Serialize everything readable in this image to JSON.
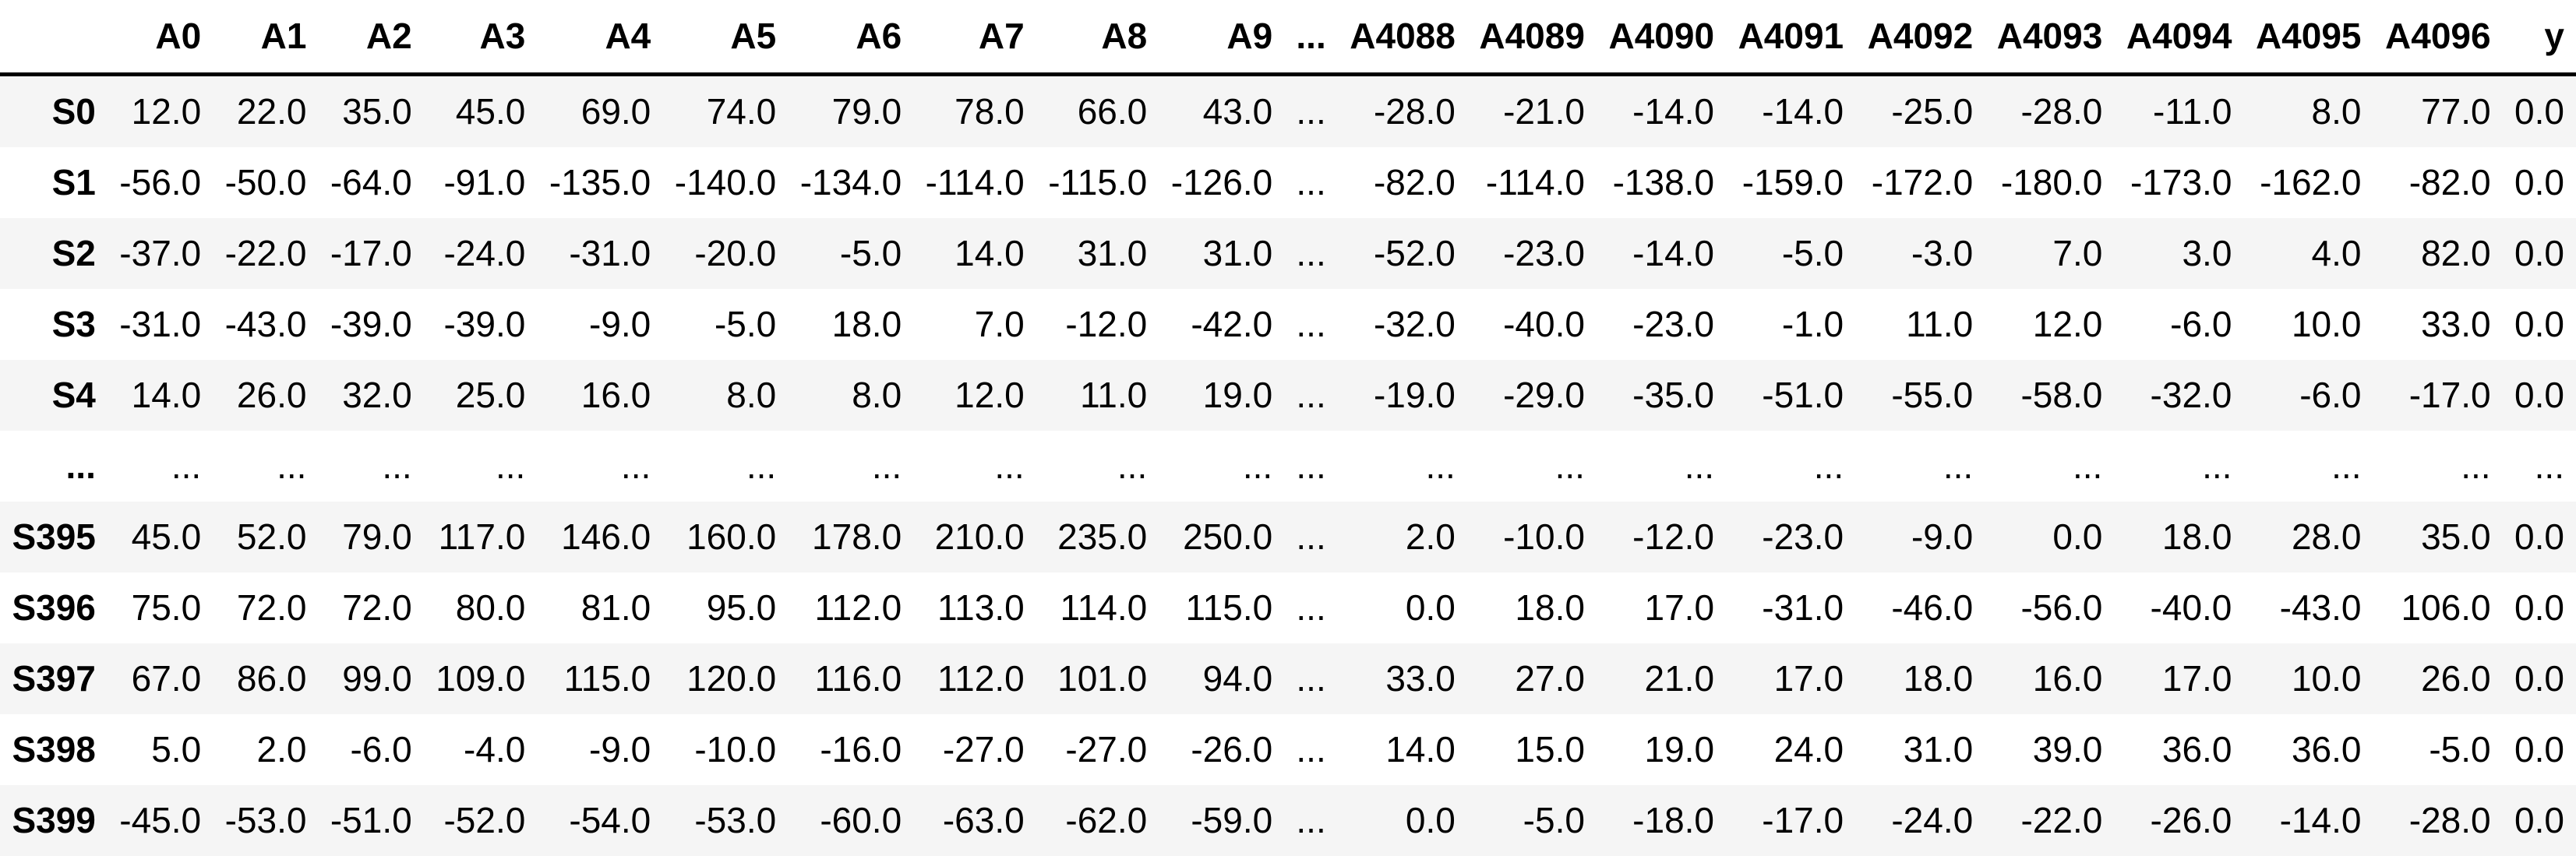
{
  "colors": {
    "background": "#ffffff",
    "row_stripe_bg": "#f5f5f5",
    "header_rule": "#000000",
    "text": "#000000"
  },
  "chart_data": {
    "type": "table",
    "description": "pandas DataFrame preview: 400 rows (S0..S399) by 4098 columns (A0..A4096, y), truncated with ellipsis row and ellipsis column",
    "corner_label": "",
    "ellipsis": "...",
    "columns": [
      "A0",
      "A1",
      "A2",
      "A3",
      "A4",
      "A5",
      "A6",
      "A7",
      "A8",
      "A9",
      "...",
      "A4088",
      "A4089",
      "A4090",
      "A4091",
      "A4092",
      "A4093",
      "A4094",
      "A4095",
      "A4096",
      "y"
    ],
    "index": [
      "S0",
      "S1",
      "S2",
      "S3",
      "S4",
      "...",
      "S395",
      "S396",
      "S397",
      "S398",
      "S399"
    ],
    "rows": [
      [
        "12.0",
        "22.0",
        "35.0",
        "45.0",
        "69.0",
        "74.0",
        "79.0",
        "78.0",
        "66.0",
        "43.0",
        "...",
        "-28.0",
        "-21.0",
        "-14.0",
        "-14.0",
        "-25.0",
        "-28.0",
        "-11.0",
        "8.0",
        "77.0",
        "0.0"
      ],
      [
        "-56.0",
        "-50.0",
        "-64.0",
        "-91.0",
        "-135.0",
        "-140.0",
        "-134.0",
        "-114.0",
        "-115.0",
        "-126.0",
        "...",
        "-82.0",
        "-114.0",
        "-138.0",
        "-159.0",
        "-172.0",
        "-180.0",
        "-173.0",
        "-162.0",
        "-82.0",
        "0.0"
      ],
      [
        "-37.0",
        "-22.0",
        "-17.0",
        "-24.0",
        "-31.0",
        "-20.0",
        "-5.0",
        "14.0",
        "31.0",
        "31.0",
        "...",
        "-52.0",
        "-23.0",
        "-14.0",
        "-5.0",
        "-3.0",
        "7.0",
        "3.0",
        "4.0",
        "82.0",
        "0.0"
      ],
      [
        "-31.0",
        "-43.0",
        "-39.0",
        "-39.0",
        "-9.0",
        "-5.0",
        "18.0",
        "7.0",
        "-12.0",
        "-42.0",
        "...",
        "-32.0",
        "-40.0",
        "-23.0",
        "-1.0",
        "11.0",
        "12.0",
        "-6.0",
        "10.0",
        "33.0",
        "0.0"
      ],
      [
        "14.0",
        "26.0",
        "32.0",
        "25.0",
        "16.0",
        "8.0",
        "8.0",
        "12.0",
        "11.0",
        "19.0",
        "...",
        "-19.0",
        "-29.0",
        "-35.0",
        "-51.0",
        "-55.0",
        "-58.0",
        "-32.0",
        "-6.0",
        "-17.0",
        "0.0"
      ],
      [
        "...",
        "...",
        "...",
        "...",
        "...",
        "...",
        "...",
        "...",
        "...",
        "...",
        "...",
        "...",
        "...",
        "...",
        "...",
        "...",
        "...",
        "...",
        "...",
        "...",
        "..."
      ],
      [
        "45.0",
        "52.0",
        "79.0",
        "117.0",
        "146.0",
        "160.0",
        "178.0",
        "210.0",
        "235.0",
        "250.0",
        "...",
        "2.0",
        "-10.0",
        "-12.0",
        "-23.0",
        "-9.0",
        "0.0",
        "18.0",
        "28.0",
        "35.0",
        "0.0"
      ],
      [
        "75.0",
        "72.0",
        "72.0",
        "80.0",
        "81.0",
        "95.0",
        "112.0",
        "113.0",
        "114.0",
        "115.0",
        "...",
        "0.0",
        "18.0",
        "17.0",
        "-31.0",
        "-46.0",
        "-56.0",
        "-40.0",
        "-43.0",
        "106.0",
        "0.0"
      ],
      [
        "67.0",
        "86.0",
        "99.0",
        "109.0",
        "115.0",
        "120.0",
        "116.0",
        "112.0",
        "101.0",
        "94.0",
        "...",
        "33.0",
        "27.0",
        "21.0",
        "17.0",
        "18.0",
        "16.0",
        "17.0",
        "10.0",
        "26.0",
        "0.0"
      ],
      [
        "5.0",
        "2.0",
        "-6.0",
        "-4.0",
        "-9.0",
        "-10.0",
        "-16.0",
        "-27.0",
        "-27.0",
        "-26.0",
        "...",
        "14.0",
        "15.0",
        "19.0",
        "24.0",
        "31.0",
        "39.0",
        "36.0",
        "36.0",
        "-5.0",
        "0.0"
      ],
      [
        "-45.0",
        "-53.0",
        "-51.0",
        "-52.0",
        "-54.0",
        "-53.0",
        "-60.0",
        "-63.0",
        "-62.0",
        "-59.0",
        "...",
        "0.0",
        "-5.0",
        "-18.0",
        "-17.0",
        "-24.0",
        "-22.0",
        "-26.0",
        "-14.0",
        "-28.0",
        "0.0"
      ]
    ]
  }
}
